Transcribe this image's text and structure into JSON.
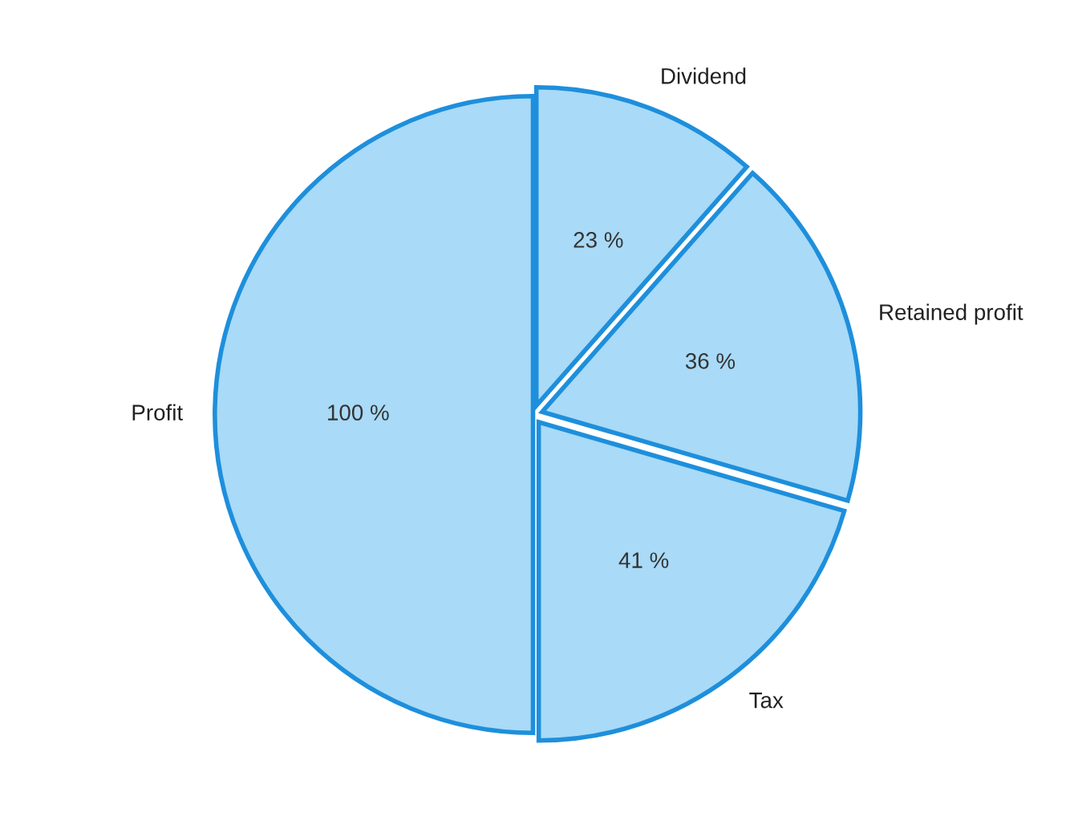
{
  "chart_data": {
    "type": "pie",
    "categories": [
      "Profit",
      "Tax",
      "Retained profit",
      "Dividend"
    ],
    "values": [
      100,
      41,
      36,
      23
    ],
    "value_labels": [
      "100 %",
      "41 %",
      "36 %",
      "23 %"
    ],
    "colors": [
      "#a9daf7",
      "#a9daf7",
      "#a9daf7",
      "#a9daf7"
    ],
    "legend": false
  }
}
